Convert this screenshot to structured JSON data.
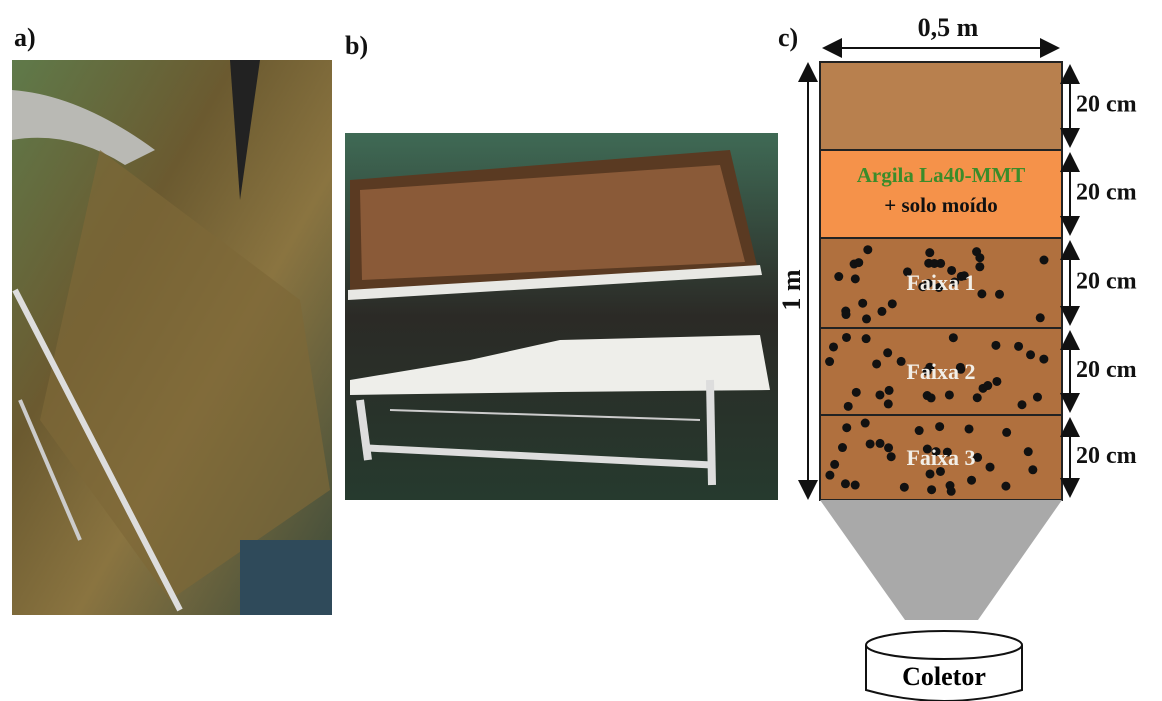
{
  "panels": [
    {
      "label": "a)"
    },
    {
      "label": "b)"
    },
    {
      "label": "c)"
    }
  ],
  "diagram": {
    "width_label": "0,5 m",
    "height_label": "1 m",
    "layers": [
      {
        "thickness": "20 cm"
      },
      {
        "thickness": "20 cm",
        "title": "Argila La40-MMT",
        "subtitle": "+ solo moído"
      },
      {
        "thickness": "20 cm",
        "label": "Faixa 1"
      },
      {
        "thickness": "20 cm",
        "label": "Faixa 2"
      },
      {
        "thickness": "20 cm",
        "label": "Faixa 3"
      }
    ],
    "collector": "Coletor"
  }
}
